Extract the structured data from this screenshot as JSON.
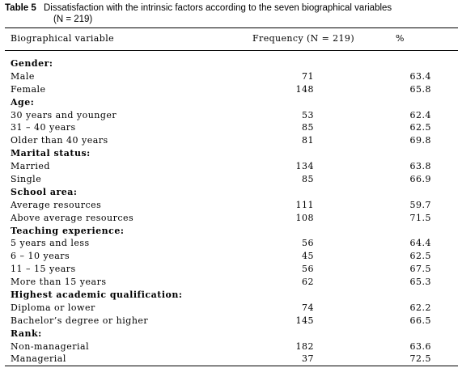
{
  "caption": {
    "label": "Table 5",
    "title_line1": "Dissatisfaction with the intrinsic factors according to the seven biographical variables",
    "title_line2": "(N = 219)"
  },
  "columns": {
    "variable": "Biographical variable",
    "frequency": "Frequency (N = 219)",
    "percent": "%"
  },
  "rows": [
    {
      "type": "group",
      "label": "Gender:"
    },
    {
      "type": "item",
      "label": "Male",
      "frequency": "71",
      "percent": "63.4"
    },
    {
      "type": "item",
      "label": "Female",
      "frequency": "148",
      "percent": "65.8"
    },
    {
      "type": "group",
      "label": "Age:"
    },
    {
      "type": "item",
      "label": "30 years and younger",
      "frequency": "53",
      "percent": "62.4"
    },
    {
      "type": "item",
      "label": "31 – 40 years",
      "frequency": "85",
      "percent": "62.5"
    },
    {
      "type": "item",
      "label": "Older than 40 years",
      "frequency": "81",
      "percent": "69.8"
    },
    {
      "type": "group",
      "label": "Marital status:"
    },
    {
      "type": "item",
      "label": "Married",
      "frequency": "134",
      "percent": "63.8"
    },
    {
      "type": "item",
      "label": "Single",
      "frequency": "85",
      "percent": "66.9"
    },
    {
      "type": "group",
      "label": "School area:"
    },
    {
      "type": "item",
      "label": "Average resources",
      "frequency": "111",
      "percent": "59.7"
    },
    {
      "type": "item",
      "label": "Above average resources",
      "frequency": "108",
      "percent": "71.5"
    },
    {
      "type": "group",
      "label": "Teaching experience:"
    },
    {
      "type": "item",
      "label": "5 years and less",
      "frequency": "56",
      "percent": "64.4"
    },
    {
      "type": "item",
      "label": "6 – 10 years",
      "frequency": "45",
      "percent": "62.5"
    },
    {
      "type": "item",
      "label": "11 – 15 years",
      "frequency": "56",
      "percent": "67.5"
    },
    {
      "type": "item",
      "label": "More than 15 years",
      "frequency": "62",
      "percent": "65.3"
    },
    {
      "type": "group",
      "label": "Highest academic qualification:"
    },
    {
      "type": "item",
      "label": "Diploma or lower",
      "frequency": "74",
      "percent": "62.2"
    },
    {
      "type": "item",
      "label": "Bachelor’s degree or higher",
      "frequency": "145",
      "percent": "66.5"
    },
    {
      "type": "group",
      "label": "Rank:"
    },
    {
      "type": "item",
      "label": "Non-managerial",
      "frequency": "182",
      "percent": "63.6"
    },
    {
      "type": "item",
      "label": "Managerial",
      "frequency": "37",
      "percent": "72.5"
    }
  ]
}
